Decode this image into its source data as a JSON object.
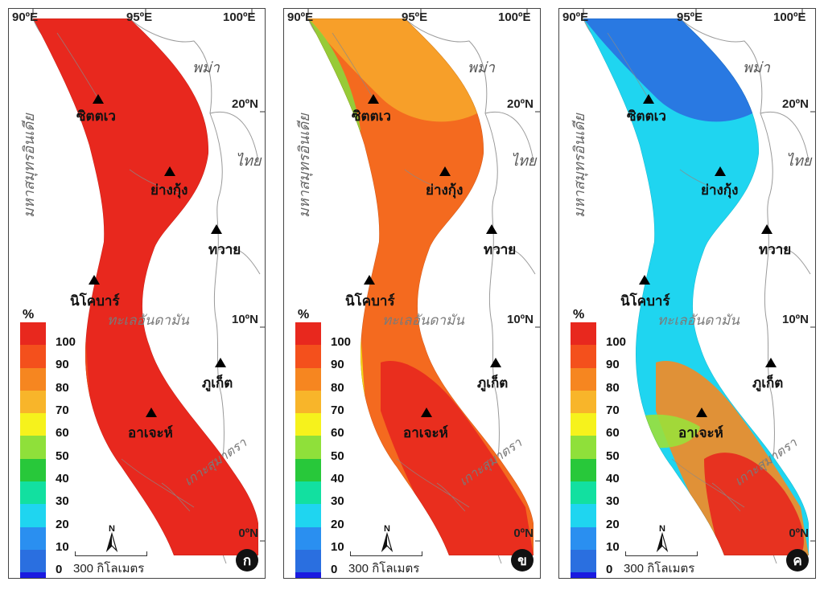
{
  "panels": [
    {
      "id": "a",
      "badge": "ก",
      "fields": [
        {
          "color": "#e8281e",
          "cover": "full"
        },
        {
          "color": "#f24a1c",
          "cover": "patch-west"
        }
      ]
    },
    {
      "id": "b",
      "badge": "ข",
      "fields": [
        {
          "color": "#f46a1f",
          "cover": "full"
        },
        {
          "color": "#f7a52a",
          "cover": "patch-north"
        },
        {
          "color": "#f5e21c",
          "cover": "patch-west"
        },
        {
          "color": "#8dd63a",
          "cover": "patch-nw"
        },
        {
          "color": "#e8281e",
          "cover": "patch-south"
        }
      ]
    },
    {
      "id": "c",
      "badge": "ค",
      "fields": [
        {
          "color": "#1fd5f0",
          "cover": "full"
        },
        {
          "color": "#2a6fe0",
          "cover": "patch-north"
        },
        {
          "color": "#f58a22",
          "cover": "patch-south"
        },
        {
          "color": "#e8281e",
          "cover": "patch-se"
        },
        {
          "color": "#9be03a",
          "cover": "patch-mid"
        }
      ]
    }
  ],
  "grid_labels": {
    "lon_90": "90ºE",
    "lon_95": "95ºE",
    "lon_100": "100ºE",
    "lat_20": "20ºN",
    "lat_10": "10ºN",
    "lat_0": "0ºN"
  },
  "place_names": {
    "ocean": "มหาสมุทรอินเดีย",
    "myanmar": "พม่า",
    "thailand": "ไทย",
    "sea": "ทะเลอันดามัน",
    "sumatra": "เกาะสุมาตรา"
  },
  "cities": {
    "sittwe": "ซิตตเว",
    "yangon": "ย่างกุ้ง",
    "dawei": "ทวาย",
    "nicobar": "นิโคบาร์",
    "phuket": "ภูเก็ต",
    "aceh": "อาเจะห์"
  },
  "legend": {
    "unit": "%",
    "ticks": [
      "100",
      "90",
      "80",
      "70",
      "60",
      "50",
      "40",
      "30",
      "20",
      "10",
      "0"
    ],
    "colors": [
      "#e8281e",
      "#f4501c",
      "#f68620",
      "#f8b52a",
      "#f6f21c",
      "#8fe03a",
      "#28c83a",
      "#12e0a0",
      "#1fd5f0",
      "#2a8ff0",
      "#2a6fe0",
      "#1a1ae0"
    ]
  },
  "scale_bar": "300 กิโลเมตร",
  "north_label": "N"
}
